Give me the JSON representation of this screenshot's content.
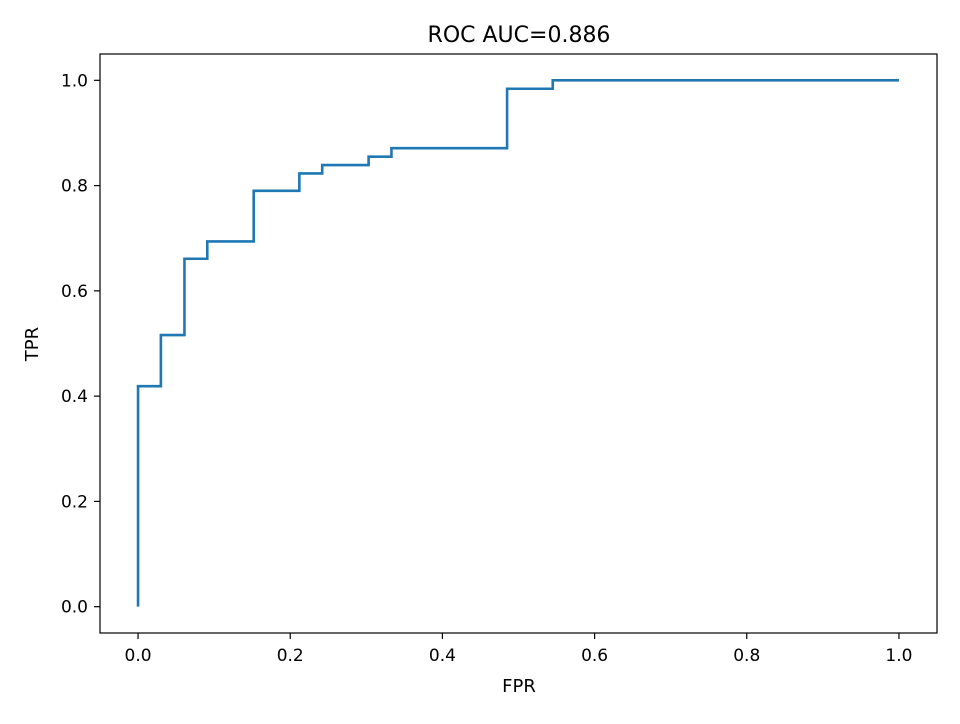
{
  "chart_data": {
    "type": "line",
    "title": "ROC AUC=0.886",
    "xlabel": "FPR",
    "ylabel": "TPR",
    "xlim": [
      -0.05,
      1.05
    ],
    "ylim": [
      -0.05,
      1.05
    ],
    "xticks": [
      0.0,
      0.2,
      0.4,
      0.6,
      0.8,
      1.0
    ],
    "xtick_labels": [
      "0.0",
      "0.2",
      "0.4",
      "0.6",
      "0.8",
      "1.0"
    ],
    "yticks": [
      0.0,
      0.2,
      0.4,
      0.6,
      0.8,
      1.0
    ],
    "ytick_labels": [
      "0.0",
      "0.2",
      "0.4",
      "0.6",
      "0.8",
      "1.0"
    ],
    "grid": false,
    "legend": "none",
    "series": [
      {
        "color": "#1f77b4",
        "x": [
          0.0,
          0.0,
          0.03,
          0.03,
          0.061,
          0.061,
          0.091,
          0.091,
          0.152,
          0.152,
          0.212,
          0.212,
          0.242,
          0.242,
          0.303,
          0.303,
          0.333,
          0.333,
          0.485,
          0.485,
          0.545,
          0.545,
          1.0
        ],
        "y": [
          0.0,
          0.419,
          0.419,
          0.516,
          0.516,
          0.661,
          0.661,
          0.694,
          0.694,
          0.79,
          0.79,
          0.823,
          0.823,
          0.839,
          0.839,
          0.855,
          0.855,
          0.871,
          0.871,
          0.984,
          0.984,
          1.0,
          1.0
        ]
      }
    ]
  }
}
